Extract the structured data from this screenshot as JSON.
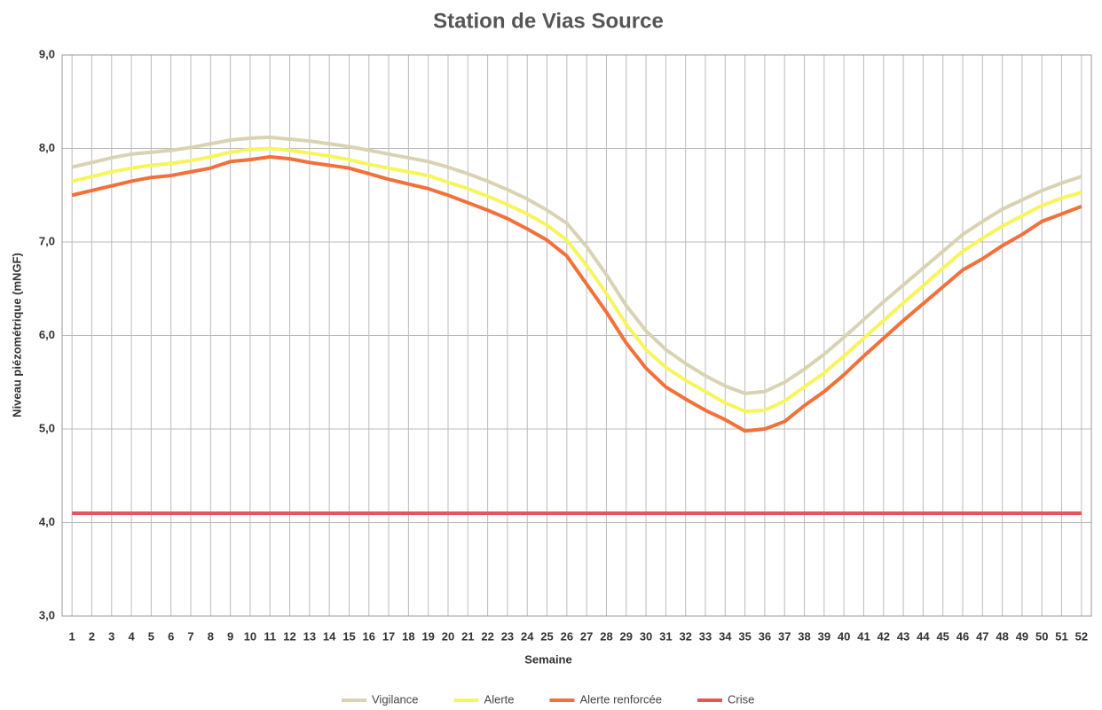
{
  "chart_data": {
    "type": "line",
    "title": "Station de Vias Source",
    "x_label": "Semaine",
    "y_label": "Niveau piézométrique (mNGF)",
    "categories": [
      "1",
      "2",
      "3",
      "4",
      "5",
      "6",
      "7",
      "8",
      "9",
      "10",
      "11",
      "12",
      "13",
      "14",
      "15",
      "16",
      "17",
      "18",
      "19",
      "20",
      "21",
      "22",
      "23",
      "24",
      "25",
      "26",
      "27",
      "28",
      "29",
      "30",
      "31",
      "32",
      "33",
      "34",
      "35",
      "36",
      "37",
      "38",
      "39",
      "40",
      "41",
      "42",
      "43",
      "44",
      "45",
      "46",
      "47",
      "48",
      "49",
      "50",
      "51",
      "52"
    ],
    "ylim": [
      3,
      9
    ],
    "yticks": [
      {
        "value": 3,
        "label": "3,0"
      },
      {
        "value": 4,
        "label": "4,0"
      },
      {
        "value": 5,
        "label": "5,0"
      },
      {
        "value": 6,
        "label": "6,0"
      },
      {
        "value": 7,
        "label": "7,0"
      },
      {
        "value": 8,
        "label": "8,0"
      },
      {
        "value": 9,
        "label": "9,0"
      }
    ],
    "grid": true,
    "legend": "bottom",
    "series": [
      {
        "name": "Vigilance",
        "color": "#d9d3b4",
        "values": [
          7.8,
          7.85,
          7.9,
          7.94,
          7.96,
          7.98,
          8.01,
          8.05,
          8.09,
          8.11,
          8.12,
          8.1,
          8.08,
          8.05,
          8.02,
          7.98,
          7.94,
          7.9,
          7.86,
          7.8,
          7.73,
          7.65,
          7.56,
          7.46,
          7.34,
          7.2,
          6.95,
          6.65,
          6.32,
          6.05,
          5.85,
          5.7,
          5.57,
          5.46,
          5.38,
          5.4,
          5.5,
          5.64,
          5.8,
          5.98,
          6.17,
          6.36,
          6.54,
          6.72,
          6.9,
          7.08,
          7.22,
          7.35,
          7.45,
          7.55,
          7.63,
          7.7
        ]
      },
      {
        "name": "Alerte",
        "color": "#f7f55c",
        "values": [
          7.65,
          7.7,
          7.75,
          7.79,
          7.82,
          7.84,
          7.87,
          7.91,
          7.96,
          7.99,
          8.0,
          7.98,
          7.95,
          7.92,
          7.88,
          7.83,
          7.79,
          7.75,
          7.71,
          7.64,
          7.57,
          7.49,
          7.4,
          7.3,
          7.18,
          7.02,
          6.75,
          6.45,
          6.12,
          5.85,
          5.66,
          5.52,
          5.4,
          5.28,
          5.19,
          5.2,
          5.3,
          5.45,
          5.6,
          5.78,
          5.97,
          6.16,
          6.35,
          6.53,
          6.72,
          6.9,
          7.04,
          7.17,
          7.28,
          7.39,
          7.47,
          7.53
        ]
      },
      {
        "name": "Alerte renforcée",
        "color": "#f2703a",
        "values": [
          7.5,
          7.55,
          7.6,
          7.65,
          7.69,
          7.71,
          7.75,
          7.79,
          7.86,
          7.88,
          7.91,
          7.89,
          7.85,
          7.82,
          7.79,
          7.73,
          7.67,
          7.62,
          7.57,
          7.5,
          7.42,
          7.34,
          7.25,
          7.14,
          7.02,
          6.85,
          6.55,
          6.25,
          5.92,
          5.65,
          5.45,
          5.32,
          5.2,
          5.1,
          4.98,
          5.0,
          5.08,
          5.25,
          5.4,
          5.58,
          5.78,
          5.97,
          6.16,
          6.34,
          6.52,
          6.7,
          6.82,
          6.96,
          7.08,
          7.22,
          7.3,
          7.38
        ]
      },
      {
        "name": "Crise",
        "color": "#e8545a",
        "values": [
          4.1,
          4.1,
          4.1,
          4.1,
          4.1,
          4.1,
          4.1,
          4.1,
          4.1,
          4.1,
          4.1,
          4.1,
          4.1,
          4.1,
          4.1,
          4.1,
          4.1,
          4.1,
          4.1,
          4.1,
          4.1,
          4.1,
          4.1,
          4.1,
          4.1,
          4.1,
          4.1,
          4.1,
          4.1,
          4.1,
          4.1,
          4.1,
          4.1,
          4.1,
          4.1,
          4.1,
          4.1,
          4.1,
          4.1,
          4.1,
          4.1,
          4.1,
          4.1,
          4.1,
          4.1,
          4.1,
          4.1,
          4.1,
          4.1,
          4.1,
          4.1,
          4.1
        ]
      }
    ]
  }
}
